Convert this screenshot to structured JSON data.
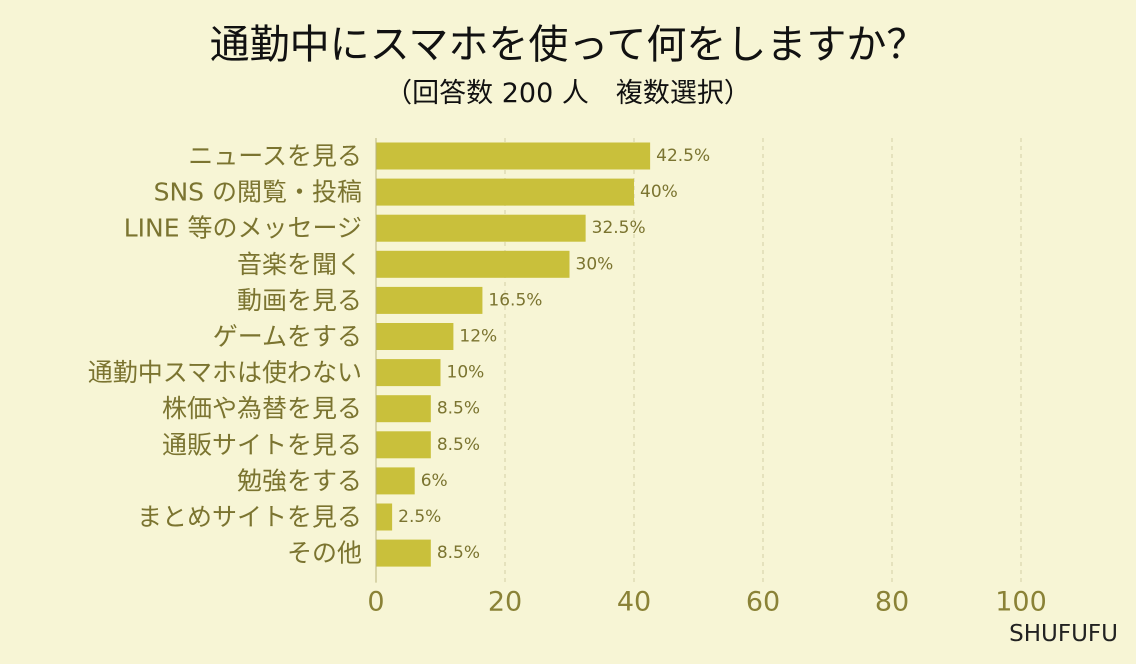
{
  "brand": "SHUFUFU",
  "colors": {
    "background": "#f7f5d5",
    "bar": "#c9c03b",
    "label_text": "#7b7430",
    "value_text": "#7b7430",
    "axis_text": "#8a8236",
    "axis_line": "#b8b37a",
    "grid": "#d3cfa5"
  },
  "chart_data": {
    "type": "bar",
    "orientation": "horizontal",
    "title": "通勤中にスマホを使って何をしますか？",
    "subtitle": "（回答数 200 人　複数選択）",
    "xlabel": "",
    "ylabel": "",
    "xlim": [
      0,
      100
    ],
    "xticks": [
      0,
      20,
      40,
      60,
      80,
      100
    ],
    "grid": "vertical dashed",
    "categories": [
      "ニュースを見る",
      "SNS の閲覧・投稿",
      "LINE 等のメッセージ",
      "音楽を聞く",
      "動画を見る",
      "ゲームをする",
      "通勤中スマホは使わない",
      "株価や為替を見る",
      "通販サイトを見る",
      "勉強をする",
      "まとめサイトを見る",
      "その他"
    ],
    "values": [
      42.5,
      40,
      32.5,
      30,
      16.5,
      12,
      10,
      8.5,
      8.5,
      6,
      2.5,
      8.5
    ],
    "value_labels": [
      "42.5%",
      "40%",
      "32.5%",
      "30%",
      "16.5%",
      "12%",
      "10%",
      "8.5%",
      "8.5%",
      "6%",
      "2.5%",
      "8.5%"
    ]
  }
}
